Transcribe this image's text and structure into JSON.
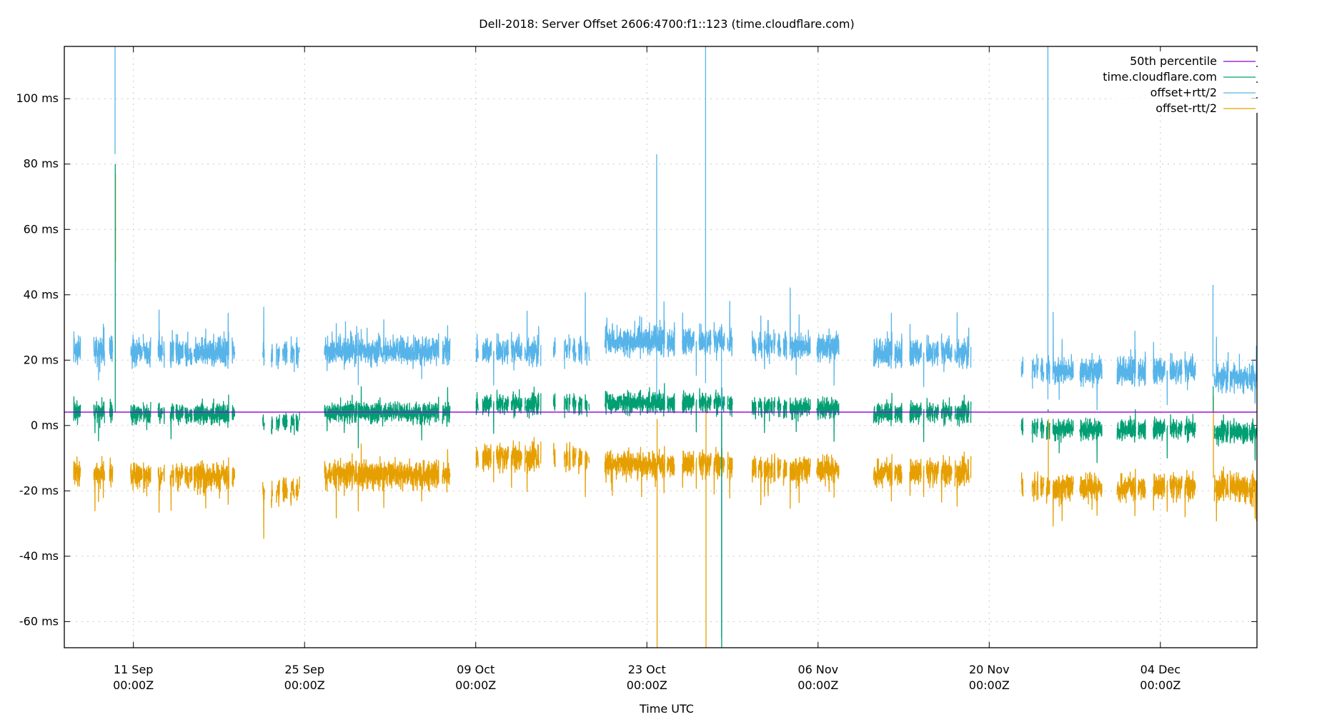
{
  "chart_data": {
    "type": "line",
    "title": "Dell-2018: Server Offset 2606:4700:f1::123 (time.cloudflare.com)",
    "xlabel": "Time UTC",
    "ylabel": "",
    "x_units": "days since 11 Sep 00:00Z",
    "xlim": [
      -5.65,
      91.9
    ],
    "ylim": [
      -68,
      116
    ],
    "grid": true,
    "legend_position": "top-right",
    "x_ticks": [
      {
        "value": 0,
        "label": "11 Sep",
        "sub": "00:00Z"
      },
      {
        "value": 14,
        "label": "25 Sep",
        "sub": "00:00Z"
      },
      {
        "value": 28,
        "label": "09 Oct",
        "sub": "00:00Z"
      },
      {
        "value": 42,
        "label": "23 Oct",
        "sub": "00:00Z"
      },
      {
        "value": 56,
        "label": "06 Nov",
        "sub": "00:00Z"
      },
      {
        "value": 70,
        "label": "20 Nov",
        "sub": "00:00Z"
      },
      {
        "value": 84,
        "label": "04 Dec",
        "sub": "00:00Z"
      }
    ],
    "y_ticks": [
      {
        "value": 100,
        "label": "100 ms"
      },
      {
        "value": 80,
        "label": "80 ms"
      },
      {
        "value": 60,
        "label": "60 ms"
      },
      {
        "value": 40,
        "label": "40 ms"
      },
      {
        "value": 20,
        "label": "20 ms"
      },
      {
        "value": 0,
        "label": "0 ms"
      },
      {
        "value": -20,
        "label": "-20 ms"
      },
      {
        "value": -40,
        "label": "-40 ms"
      },
      {
        "value": -60,
        "label": "-60 ms"
      }
    ],
    "series": [
      {
        "name": "50th percentile",
        "color": "#9400d3",
        "value": 4.1
      },
      {
        "name": "time.cloudflare.com",
        "color": "#009e73"
      },
      {
        "name": "offset+rtt/2",
        "color": "#56b4e9"
      },
      {
        "name": "offset-rtt/2",
        "color": "#e69f00"
      }
    ],
    "segments": [
      {
        "start": -5.6,
        "end": -1.7,
        "offset": 4,
        "half_rtt": 17,
        "density": 0.8
      },
      {
        "start": -0.3,
        "end": 9.0,
        "offset": 3.5,
        "half_rtt": 17,
        "density": 0.7
      },
      {
        "start": 10.1,
        "end": 14.9,
        "offset": 1,
        "half_rtt": 19,
        "density": 0.3
      },
      {
        "start": 15.6,
        "end": 25.9,
        "offset": 4,
        "half_rtt": 17,
        "density": 0.95
      },
      {
        "start": 28.0,
        "end": 37.3,
        "offset": 6.5,
        "half_rtt": 14.5,
        "density": 0.5
      },
      {
        "start": 38.3,
        "end": 49.0,
        "offset": 7,
        "half_rtt": 17,
        "density": 0.6
      },
      {
        "start": 50.6,
        "end": 58.0,
        "offset": 5.5,
        "half_rtt": 17,
        "density": 0.6
      },
      {
        "start": 59.6,
        "end": 68.7,
        "offset": 4,
        "half_rtt": 16.5,
        "density": 0.6
      },
      {
        "start": 71.8,
        "end": 87.0,
        "offset": -1,
        "half_rtt": 16,
        "density": 0.6
      },
      {
        "start": 88.3,
        "end": 91.9,
        "offset": -2,
        "half_rtt": 15,
        "density": 0.8
      }
    ],
    "spikes": [
      {
        "x": -1.5,
        "offset": 80,
        "plus": 116,
        "minus": 50
      },
      {
        "x": 42.8,
        "offset": 5,
        "plus": 83,
        "minus": -68
      },
      {
        "x": 46.8,
        "offset": 10,
        "plus": 116,
        "minus": -68
      },
      {
        "x": 48.1,
        "offset": -68,
        "plus": 30,
        "minus": -68
      },
      {
        "x": 74.8,
        "offset": 5,
        "plus": 116,
        "minus": -20
      },
      {
        "x": 88.3,
        "offset": 12,
        "plus": 43,
        "minus": -16
      }
    ]
  }
}
